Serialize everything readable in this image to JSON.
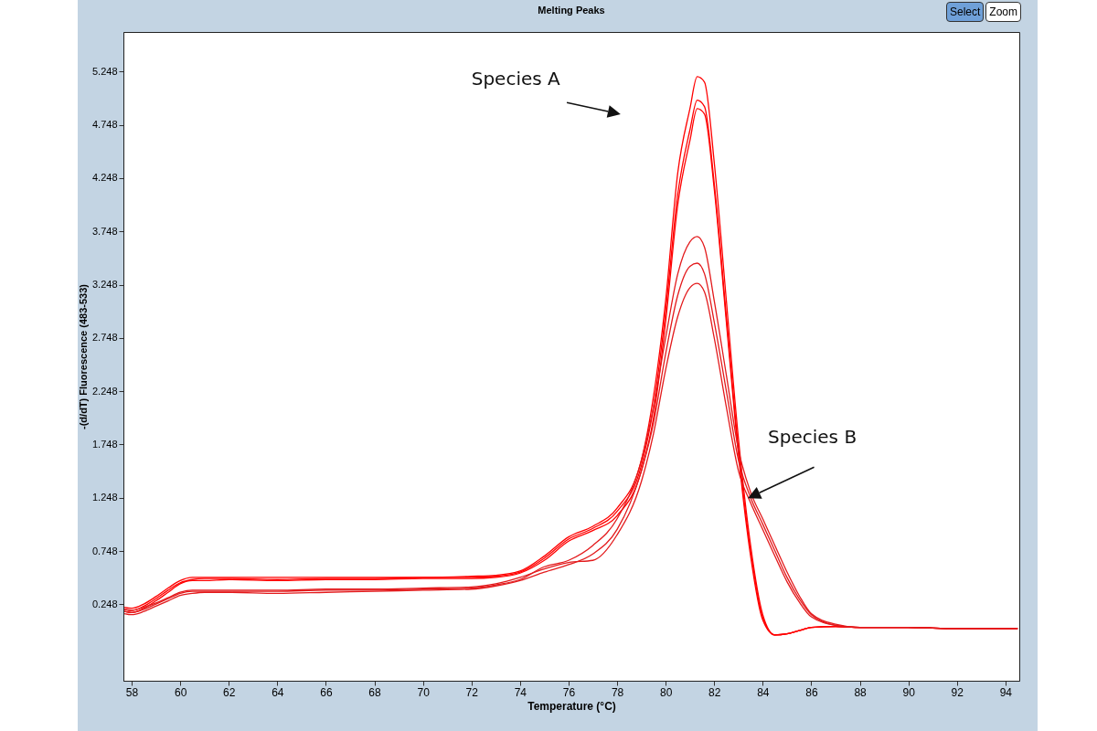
{
  "chart_data": {
    "type": "line",
    "title": "Melting Peaks",
    "xlabel": "Temperature (°C)",
    "ylabel": "-(d/dT) Fluorescence (483-533)",
    "x": [
      57.7,
      58,
      58.5,
      59,
      59.5,
      60,
      60.5,
      61,
      62,
      64,
      66,
      68,
      70,
      72,
      73,
      74,
      75,
      76,
      77,
      78,
      79,
      79.5,
      80,
      80.5,
      81,
      81.3,
      81.6,
      82,
      82.5,
      83,
      83.5,
      84,
      84.5,
      85,
      85.5,
      86,
      87,
      88,
      90,
      92,
      94.5
    ],
    "xlim": [
      57.66,
      94.57
    ],
    "xticks": [
      58,
      60,
      62,
      64,
      66,
      68,
      70,
      72,
      74,
      76,
      78,
      80,
      82,
      84,
      86,
      88,
      90,
      92,
      94
    ],
    "ylim": [
      -0.47,
      5.62
    ],
    "yticks": [
      0.248,
      0.748,
      1.248,
      1.748,
      2.248,
      2.748,
      3.248,
      3.748,
      4.248,
      4.748,
      5.248
    ],
    "series": [
      {
        "color": "#ff0000",
        "values": [
          0.22,
          0.21,
          0.25,
          0.32,
          0.4,
          0.47,
          0.5,
          0.5,
          0.5,
          0.5,
          0.5,
          0.5,
          0.5,
          0.51,
          0.52,
          0.56,
          0.7,
          0.88,
          0.98,
          1.15,
          1.6,
          2.2,
          3.1,
          4.3,
          4.9,
          5.2,
          5.15,
          4.4,
          3.1,
          1.8,
          0.8,
          0.15,
          -0.04,
          -0.03,
          0.0,
          0.03,
          0.04,
          0.03,
          0.03,
          0.02,
          0.02
        ]
      },
      {
        "color": "#ff0000",
        "values": [
          0.2,
          0.19,
          0.23,
          0.3,
          0.38,
          0.45,
          0.48,
          0.49,
          0.49,
          0.48,
          0.49,
          0.49,
          0.5,
          0.5,
          0.51,
          0.55,
          0.68,
          0.86,
          0.96,
          1.12,
          1.55,
          2.1,
          3.0,
          4.1,
          4.7,
          4.98,
          4.92,
          4.2,
          2.95,
          1.7,
          0.75,
          0.12,
          -0.04,
          -0.03,
          0.0,
          0.03,
          0.04,
          0.03,
          0.03,
          0.02,
          0.02
        ]
      },
      {
        "color": "#ff0000",
        "values": [
          0.18,
          0.17,
          0.21,
          0.28,
          0.36,
          0.44,
          0.47,
          0.47,
          0.48,
          0.47,
          0.48,
          0.48,
          0.49,
          0.49,
          0.5,
          0.54,
          0.66,
          0.84,
          0.94,
          1.08,
          1.5,
          2.0,
          2.9,
          4.0,
          4.6,
          4.9,
          4.85,
          4.15,
          2.9,
          1.65,
          0.7,
          0.1,
          -0.04,
          -0.03,
          0.0,
          0.03,
          0.04,
          0.03,
          0.03,
          0.02,
          0.02
        ]
      },
      {
        "color": "#e31a1c",
        "values": [
          0.18,
          0.17,
          0.2,
          0.25,
          0.3,
          0.35,
          0.37,
          0.37,
          0.37,
          0.37,
          0.38,
          0.38,
          0.39,
          0.4,
          0.43,
          0.48,
          0.6,
          0.66,
          0.8,
          1.05,
          1.6,
          2.1,
          2.75,
          3.35,
          3.65,
          3.7,
          3.6,
          3.1,
          2.4,
          1.7,
          1.3,
          1.05,
          0.8,
          0.55,
          0.33,
          0.16,
          0.06,
          0.03,
          0.03,
          0.02,
          0.02
        ]
      },
      {
        "color": "#e31a1c",
        "values": [
          0.16,
          0.15,
          0.18,
          0.23,
          0.28,
          0.33,
          0.35,
          0.36,
          0.36,
          0.35,
          0.36,
          0.37,
          0.38,
          0.39,
          0.42,
          0.47,
          0.55,
          0.62,
          0.72,
          0.95,
          1.5,
          1.95,
          2.6,
          3.15,
          3.42,
          3.45,
          3.35,
          2.9,
          2.25,
          1.6,
          1.25,
          1.0,
          0.75,
          0.5,
          0.3,
          0.15,
          0.05,
          0.03,
          0.03,
          0.02,
          0.02
        ]
      },
      {
        "color": "#e31a1c",
        "values": [
          0.2,
          0.19,
          0.22,
          0.26,
          0.31,
          0.36,
          0.38,
          0.38,
          0.38,
          0.38,
          0.39,
          0.39,
          0.4,
          0.41,
          0.44,
          0.5,
          0.58,
          0.64,
          0.66,
          0.9,
          1.4,
          1.85,
          2.45,
          2.95,
          3.22,
          3.26,
          3.18,
          2.75,
          2.1,
          1.5,
          1.2,
          0.95,
          0.7,
          0.46,
          0.27,
          0.13,
          0.05,
          0.03,
          0.03,
          0.02,
          0.02
        ]
      }
    ],
    "annotations": [
      "Species A",
      "Species B",
      "Select",
      "Zoom"
    ]
  }
}
